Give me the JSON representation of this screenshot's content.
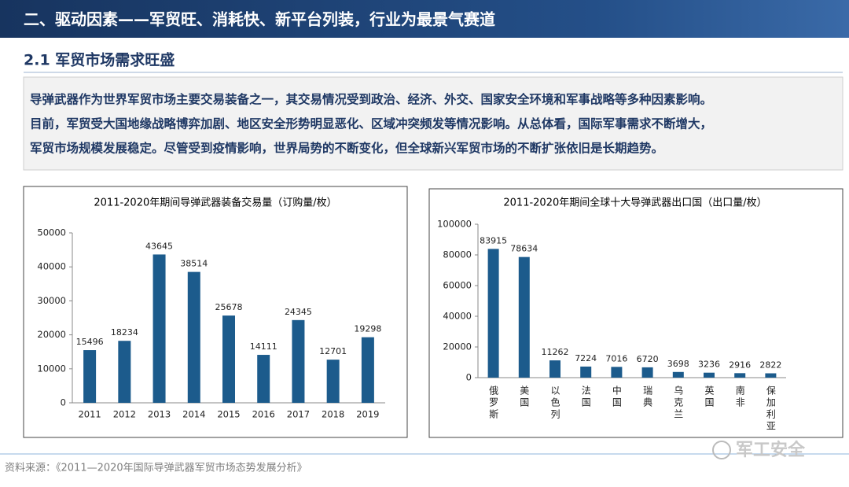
{
  "header": {
    "title": "二、驱动因素——军贸旺、消耗快、新平台列装，行业为最景气赛道"
  },
  "section": {
    "title": "2.1 军贸市场需求旺盛"
  },
  "paragraph": [
    "导弹武器作为世界军贸市场主要交易装备之一，其交易情况受到政治、经济、外交、国家安全环境和军事战略等多种因素影响。",
    "目前，军贸受大国地缘战略博弈加剧、地区安全形势明显恶化、区域冲突频发等情况影响。从总体看，国际军事需求不断增大，",
    "军贸市场规模发展稳定。尽管受到疫情影响，世界局势的不断变化，但全球新兴军贸市场的不断扩张依旧是长期趋势。"
  ],
  "chart_data": [
    {
      "type": "bar",
      "title": "2011-2020年期间导弹武器装备交易量（订购量/枚）",
      "categories": [
        "2011",
        "2012",
        "2013",
        "2014",
        "2015",
        "2016",
        "2017",
        "2018",
        "2019"
      ],
      "values": [
        15496,
        18234,
        43645,
        38514,
        25678,
        14111,
        24345,
        12701,
        19298
      ],
      "color": "#1c5b8c",
      "ylim": [
        0,
        50000
      ],
      "yticks": [
        0,
        10000,
        20000,
        30000,
        40000,
        50000
      ]
    },
    {
      "type": "bar",
      "title": "2011-2020年期间全球十大导弹武器出口国（出口量/枚）",
      "categories": [
        "俄罗斯",
        "美国",
        "以色列",
        "法国",
        "中国",
        "瑞典",
        "乌克兰",
        "英国",
        "南非",
        "保加利亚"
      ],
      "values": [
        83915,
        78634,
        11262,
        7224,
        7016,
        6720,
        3698,
        3236,
        2916,
        2822
      ],
      "color": "#1c5b8c",
      "ylim": [
        0,
        100000
      ],
      "yticks": [
        0,
        20000,
        40000,
        60000,
        80000,
        100000
      ]
    }
  ],
  "source": "资料来源：《2011—2020年国际导弹武器军贸市场态势发展分析》",
  "watermark": "军工安全"
}
